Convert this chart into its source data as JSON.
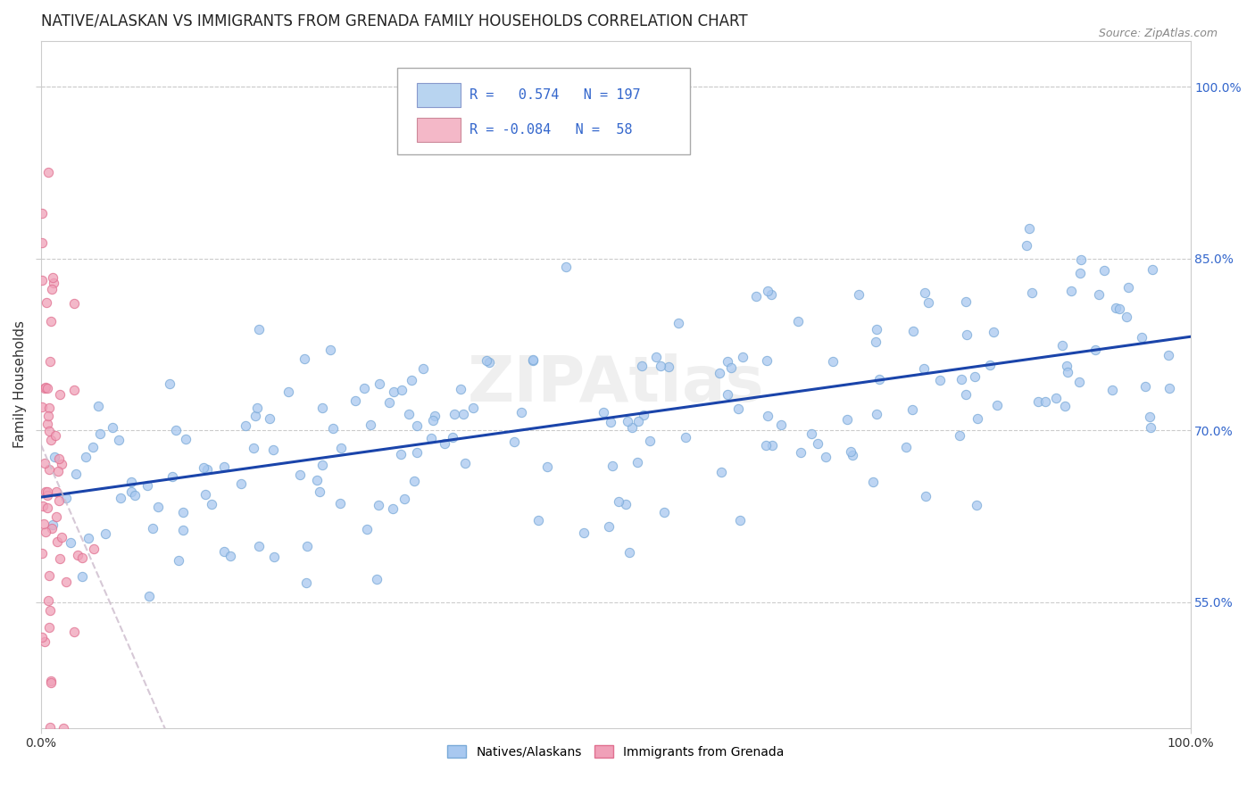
{
  "title": "NATIVE/ALASKAN VS IMMIGRANTS FROM GRENADA FAMILY HOUSEHOLDS CORRELATION CHART",
  "source": "Source: ZipAtlas.com",
  "ylabel": "Family Households",
  "xlim": [
    0,
    1
  ],
  "ylim": [
    0.44,
    1.04
  ],
  "xtick_labels": [
    "0.0%",
    "100.0%"
  ],
  "xtick_positions": [
    0,
    1
  ],
  "ytick_labels": [
    "55.0%",
    "70.0%",
    "85.0%",
    "100.0%"
  ],
  "ytick_positions": [
    0.55,
    0.7,
    0.85,
    1.0
  ],
  "r_blue": 0.574,
  "n_blue": 197,
  "r_pink": -0.084,
  "n_pink": 58,
  "blue_dot_color": "#a8c8f0",
  "blue_dot_edge": "#7aaad8",
  "pink_dot_color": "#f0a0b8",
  "pink_dot_edge": "#e07090",
  "blue_line_color": "#1a44aa",
  "pink_line_color": "#ccbbcc",
  "watermark": "ZIPAtlas",
  "watermark_color": "#dddddd",
  "background_color": "#ffffff",
  "title_fontsize": 12,
  "axis_label_fontsize": 11,
  "tick_fontsize": 10,
  "legend_fontsize": 12,
  "legend_text_color": "#3366cc",
  "legend_box_blue": "#b8d4f0",
  "legend_box_pink": "#f4b8c8",
  "right_tick_color": "#3366cc",
  "seed_blue": 42,
  "seed_pink": 7
}
